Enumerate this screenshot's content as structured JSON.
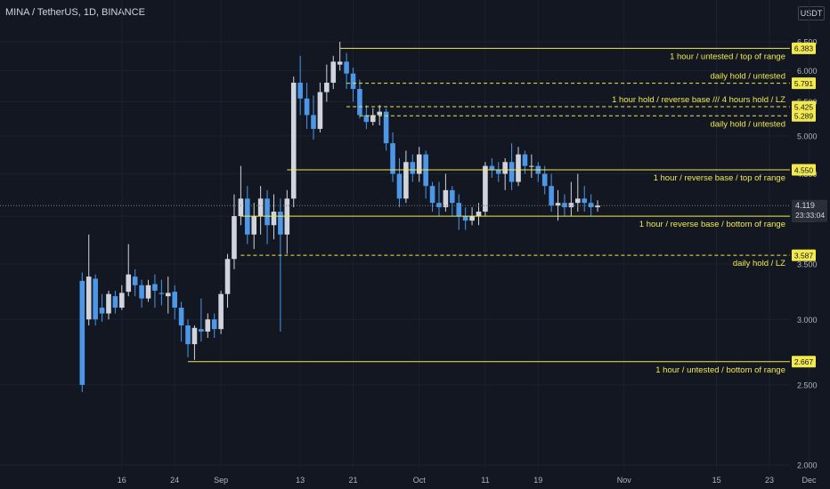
{
  "header": {
    "title": "MINA / TetherUS, 1D, BINANCE",
    "currency": "USDT"
  },
  "countdown": "23:33:04",
  "colors": {
    "background": "#131722",
    "up": "#d1d4dc",
    "down": "#4c97e8",
    "level": "#f2e94e",
    "axis_text": "#b2b5be"
  },
  "chart_data": {
    "type": "candlestick",
    "ylim": [
      2.0,
      6.6
    ],
    "y_scale": "log",
    "y_ticks": [
      "6.500",
      "6.000",
      "5.500",
      "5.000",
      "4.500",
      "4.000",
      "3.500",
      "3.000",
      "2.500",
      "2.000"
    ],
    "y_tick_values": [
      6.5,
      6.0,
      5.5,
      5.0,
      4.5,
      4.0,
      3.5,
      3.0,
      2.5,
      2.0
    ],
    "x_tick_labels": [
      {
        "label": "16",
        "index": 6
      },
      {
        "label": "24",
        "index": 14
      },
      {
        "label": "Sep",
        "index": 21
      },
      {
        "label": "13",
        "index": 33
      },
      {
        "label": "21",
        "index": 41
      },
      {
        "label": "Oct",
        "index": 51
      },
      {
        "label": "11",
        "index": 61
      },
      {
        "label": "19",
        "index": 69
      },
      {
        "label": "Nov",
        "index": 82
      },
      {
        "label": "15",
        "index": 96
      },
      {
        "label": "23",
        "index": 104
      },
      {
        "label": "Dec",
        "index": 110
      }
    ],
    "last_price": "4.119",
    "last_value": 4.119,
    "candles": [
      [
        3.34,
        2.5,
        3.42,
        2.45
      ],
      [
        3.0,
        3.38,
        3.8,
        2.95
      ],
      [
        3.36,
        3.0,
        3.4,
        2.95
      ],
      [
        3.1,
        3.05,
        3.22,
        2.98
      ],
      [
        3.05,
        3.22,
        3.25,
        3.0
      ],
      [
        3.2,
        3.1,
        3.25,
        3.05
      ],
      [
        3.1,
        3.23,
        3.3,
        3.08
      ],
      [
        3.24,
        3.4,
        3.7,
        3.2
      ],
      [
        3.38,
        3.3,
        3.45,
        3.2
      ],
      [
        3.3,
        3.18,
        3.35,
        3.1
      ],
      [
        3.18,
        3.3,
        3.35,
        3.15
      ],
      [
        3.31,
        3.25,
        3.4,
        3.1
      ],
      [
        3.23,
        3.22,
        3.35,
        3.12
      ],
      [
        3.2,
        3.23,
        3.38,
        3.05
      ],
      [
        3.24,
        3.1,
        3.3,
        3.0
      ],
      [
        3.1,
        2.95,
        3.15,
        2.82
      ],
      [
        2.95,
        2.8,
        3.0,
        2.7
      ],
      [
        2.8,
        2.93,
        2.95,
        2.68
      ],
      [
        2.92,
        2.9,
        3.18,
        2.82
      ],
      [
        2.9,
        3.0,
        3.05,
        2.85
      ],
      [
        3.0,
        2.92,
        3.05,
        2.85
      ],
      [
        2.92,
        3.22,
        3.25,
        2.88
      ],
      [
        3.22,
        3.55,
        3.6,
        3.1
      ],
      [
        3.55,
        4.0,
        4.25,
        3.45
      ],
      [
        4.0,
        4.2,
        4.6,
        3.9
      ],
      [
        4.2,
        3.8,
        4.35,
        3.7
      ],
      [
        3.8,
        4.0,
        4.15,
        3.65
      ],
      [
        4.0,
        4.2,
        4.35,
        3.8
      ],
      [
        4.2,
        3.9,
        4.3,
        3.7
      ],
      [
        3.9,
        4.05,
        4.25,
        3.75
      ],
      [
        4.05,
        3.8,
        4.2,
        2.9
      ],
      [
        3.8,
        4.2,
        4.3,
        3.6
      ],
      [
        4.2,
        5.8,
        5.9,
        4.1
      ],
      [
        5.8,
        5.55,
        6.25,
        5.3
      ],
      [
        5.55,
        5.3,
        5.8,
        5.1
      ],
      [
        5.3,
        5.1,
        5.6,
        4.95
      ],
      [
        5.1,
        5.65,
        5.8,
        5.05
      ],
      [
        5.65,
        5.8,
        6.1,
        5.5
      ],
      [
        5.8,
        6.15,
        6.25,
        5.7
      ],
      [
        6.1,
        6.15,
        6.5,
        6.0
      ],
      [
        6.15,
        5.95,
        6.3,
        5.7
      ],
      [
        5.95,
        5.7,
        6.05,
        5.5
      ],
      [
        5.7,
        5.3,
        5.85,
        5.25
      ],
      [
        5.3,
        5.2,
        5.45,
        5.1
      ],
      [
        5.2,
        5.3,
        5.4,
        5.15
      ],
      [
        5.3,
        5.35,
        5.45,
        5.15
      ],
      [
        5.35,
        4.9,
        5.4,
        4.8
      ],
      [
        4.9,
        4.5,
        5.05,
        4.4
      ],
      [
        4.5,
        4.2,
        4.7,
        4.1
      ],
      [
        4.2,
        4.65,
        4.8,
        4.15
      ],
      [
        4.65,
        4.5,
        4.75,
        4.4
      ],
      [
        4.5,
        4.75,
        4.85,
        4.4
      ],
      [
        4.75,
        4.35,
        4.8,
        4.2
      ],
      [
        4.35,
        4.15,
        4.4,
        4.05
      ],
      [
        4.15,
        4.1,
        4.4,
        4.0
      ],
      [
        4.1,
        4.3,
        4.5,
        4.05
      ],
      [
        4.3,
        4.15,
        4.35,
        4.0
      ],
      [
        4.15,
        4.0,
        4.25,
        3.85
      ],
      [
        4.0,
        3.95,
        4.1,
        3.85
      ],
      [
        3.95,
        4.0,
        4.1,
        3.9
      ],
      [
        4.0,
        4.05,
        4.15,
        3.9
      ],
      [
        4.05,
        4.6,
        4.65,
        4.0
      ],
      [
        4.6,
        4.55,
        4.7,
        4.45
      ],
      [
        4.55,
        4.5,
        4.65,
        4.4
      ],
      [
        4.5,
        4.65,
        4.7,
        4.3
      ],
      [
        4.65,
        4.4,
        4.9,
        4.3
      ],
      [
        4.4,
        4.75,
        4.85,
        4.35
      ],
      [
        4.75,
        4.6,
        4.8,
        4.5
      ],
      [
        4.6,
        4.6,
        4.75,
        4.45
      ],
      [
        4.6,
        4.5,
        4.65,
        4.4
      ],
      [
        4.5,
        4.35,
        4.6,
        4.25
      ],
      [
        4.35,
        4.12,
        4.5,
        4.05
      ],
      [
        4.12,
        4.15,
        4.3,
        3.95
      ],
      [
        4.15,
        4.1,
        4.25,
        4.0
      ],
      [
        4.1,
        4.15,
        4.4,
        4.0
      ],
      [
        4.15,
        4.2,
        4.5,
        4.05
      ],
      [
        4.2,
        4.15,
        4.35,
        4.05
      ],
      [
        4.15,
        4.1,
        4.25,
        4.0
      ],
      [
        4.1,
        4.12,
        4.18,
        4.05
      ]
    ],
    "levels": [
      {
        "price": "6.383",
        "value": 6.383,
        "label": "1 hour / untested / top of range",
        "style": "solid",
        "start_index": 39,
        "label_side": "below"
      },
      {
        "price": "5.791",
        "value": 5.791,
        "label": "daily hold / untested",
        "style": "dashed",
        "start_index": 40,
        "label_side": "above"
      },
      {
        "price": "5.425",
        "value": 5.425,
        "label": "1 hour hold / reverse base /// 4 hours hold / LZ",
        "style": "dashed",
        "start_index": 40,
        "label_side": "above"
      },
      {
        "price": "5.289",
        "value": 5.289,
        "label": "daily hold / untested",
        "style": "dashed",
        "start_index": 42,
        "label_side": "below"
      },
      {
        "price": "4.550",
        "value": 4.55,
        "label": "1 hour / reverse base / top of range",
        "style": "solid",
        "start_index": 31,
        "label_side": "below"
      },
      {
        "price": "4.000",
        "value": 4.0,
        "label": "1 hour / reverse base / bottom of range",
        "style": "solid",
        "start_index": 24,
        "label_side": "below"
      },
      {
        "price": "3.587",
        "value": 3.587,
        "label": "daily hold / LZ",
        "style": "dashed",
        "start_index": 24,
        "label_side": "below"
      },
      {
        "price": "2.667",
        "value": 2.667,
        "label": "1 hour / untested / bottom of range",
        "style": "solid",
        "start_index": 16,
        "label_side": "below"
      }
    ]
  }
}
